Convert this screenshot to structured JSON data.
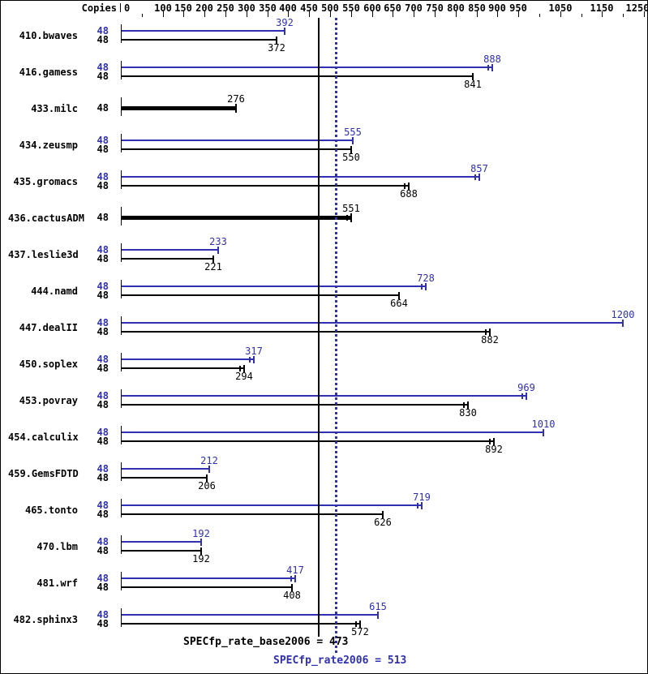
{
  "chart_data": {
    "type": "bar",
    "orientation": "horizontal",
    "title": "",
    "xlabel": "Copies",
    "ylabel": "",
    "xlim": [
      0,
      1250
    ],
    "grid": false,
    "legend": "none",
    "x_axis": {
      "major_ticks": [
        0,
        100,
        150,
        200,
        250,
        300,
        350,
        400,
        450,
        500,
        550,
        600,
        650,
        700,
        750,
        800,
        850,
        900,
        950,
        1050,
        1150,
        1250
      ],
      "minor_ticks": [
        50,
        1000,
        1100,
        1200
      ]
    },
    "colors": {
      "peak": "#3030b0",
      "base": "#000000"
    },
    "series": [
      {
        "name": "peak",
        "color": "#3030b0"
      },
      {
        "name": "base",
        "color": "#000000"
      }
    ],
    "benchmarks": [
      {
        "name": "410.bwaves",
        "copies": 48,
        "peak": 392,
        "base": 372,
        "peak_dbl": false,
        "base_dbl": false,
        "base_only": false
      },
      {
        "name": "416.gamess",
        "copies": 48,
        "peak": 888,
        "base": 841,
        "peak_dbl": true,
        "base_dbl": false,
        "base_only": false
      },
      {
        "name": "433.milc",
        "copies": 48,
        "peak": null,
        "base": 276,
        "peak_dbl": false,
        "base_dbl": false,
        "base_only": true
      },
      {
        "name": "434.zeusmp",
        "copies": 48,
        "peak": 555,
        "base": 550,
        "peak_dbl": false,
        "base_dbl": false,
        "base_only": false
      },
      {
        "name": "435.gromacs",
        "copies": 48,
        "peak": 857,
        "base": 688,
        "peak_dbl": true,
        "base_dbl": true,
        "base_only": false
      },
      {
        "name": "436.cactusADM",
        "copies": 48,
        "peak": null,
        "base": 551,
        "peak_dbl": false,
        "base_dbl": true,
        "base_only": true
      },
      {
        "name": "437.leslie3d",
        "copies": 48,
        "peak": 233,
        "base": 221,
        "peak_dbl": false,
        "base_dbl": false,
        "base_only": false
      },
      {
        "name": "444.namd",
        "copies": 48,
        "peak": 728,
        "base": 664,
        "peak_dbl": true,
        "base_dbl": false,
        "base_only": false
      },
      {
        "name": "447.dealII",
        "copies": 48,
        "peak": 1200,
        "base": 882,
        "peak_dbl": false,
        "base_dbl": true,
        "base_only": false
      },
      {
        "name": "450.soplex",
        "copies": 48,
        "peak": 317,
        "base": 294,
        "peak_dbl": true,
        "base_dbl": true,
        "base_only": false
      },
      {
        "name": "453.povray",
        "copies": 48,
        "peak": 969,
        "base": 830,
        "peak_dbl": true,
        "base_dbl": true,
        "base_only": false
      },
      {
        "name": "454.calculix",
        "copies": 48,
        "peak": 1010,
        "base": 892,
        "peak_dbl": false,
        "base_dbl": true,
        "base_only": false
      },
      {
        "name": "459.GemsFDTD",
        "copies": 48,
        "peak": 212,
        "base": 206,
        "peak_dbl": false,
        "base_dbl": false,
        "base_only": false
      },
      {
        "name": "465.tonto",
        "copies": 48,
        "peak": 719,
        "base": 626,
        "peak_dbl": true,
        "base_dbl": false,
        "base_only": false
      },
      {
        "name": "470.lbm",
        "copies": 48,
        "peak": 192,
        "base": 192,
        "peak_dbl": false,
        "base_dbl": false,
        "base_only": false
      },
      {
        "name": "481.wrf",
        "copies": 48,
        "peak": 417,
        "base": 408,
        "peak_dbl": true,
        "base_dbl": false,
        "base_only": false
      },
      {
        "name": "482.sphinx3",
        "copies": 48,
        "peak": 615,
        "base": 572,
        "peak_dbl": false,
        "base_dbl": true,
        "base_only": false
      }
    ],
    "reference_lines": [
      {
        "name": "base_rate",
        "value": 473,
        "style": "solid",
        "color": "#000000"
      },
      {
        "name": "peak_rate",
        "value": 513,
        "style": "dotted",
        "color": "#3030b0"
      }
    ],
    "footer_base": "SPECfp_rate_base2006 = 473",
    "footer_peak": "SPECfp_rate2006 = 513"
  }
}
